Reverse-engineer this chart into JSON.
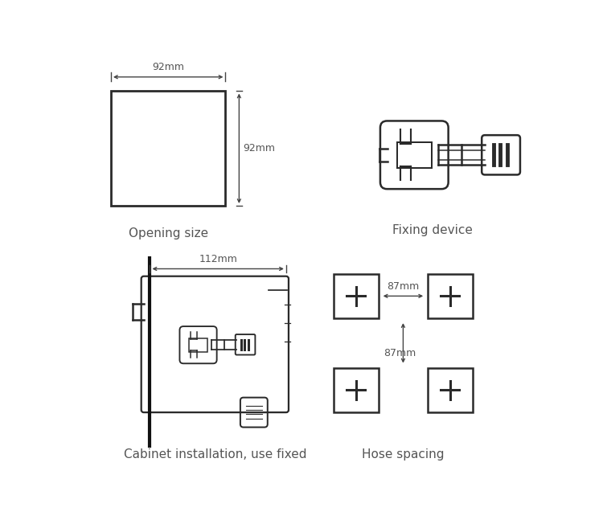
{
  "bg_color": "#ffffff",
  "line_color": "#2a2a2a",
  "dim_color": "#444444",
  "text_color": "#555555",
  "labels": {
    "opening": "Opening size",
    "fixing": "Fixing device",
    "cabinet": "Cabinet installation, use fixed",
    "hose": "Hose spacing"
  },
  "dims": {
    "opening_w": "92mm",
    "opening_h": "92mm",
    "cabinet_w": "112mm",
    "hose_h": "87mm",
    "hose_w": "87mm"
  }
}
